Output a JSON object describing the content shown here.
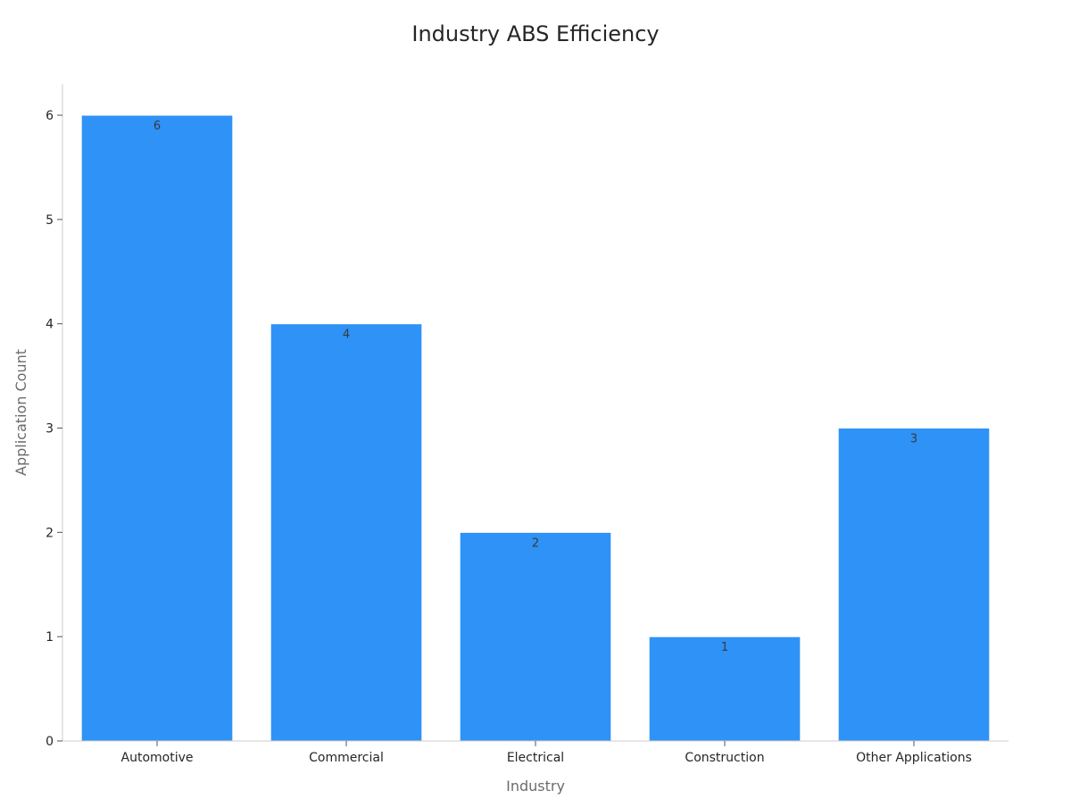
{
  "chart_data": {
    "type": "bar",
    "title": "Industry ABS Efficiency",
    "xlabel": "Industry",
    "ylabel": "Application Count",
    "categories": [
      "Automotive",
      "Commercial",
      "Electrical",
      "Construction",
      "Other Applications"
    ],
    "values": [
      6,
      4,
      2,
      1,
      3
    ],
    "ylim": [
      0,
      6.3
    ],
    "yticks": [
      0,
      1,
      2,
      3,
      4,
      5,
      6
    ],
    "bar_color": "#2e92f7",
    "data_labels": true,
    "grid": false,
    "legend": "none"
  }
}
